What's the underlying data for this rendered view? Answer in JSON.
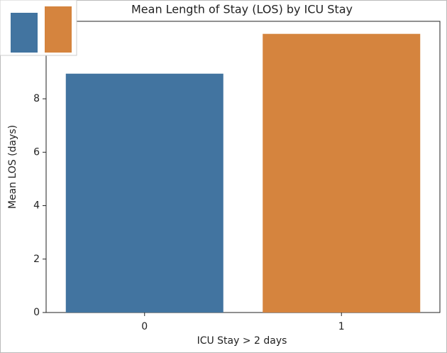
{
  "chart_data": {
    "type": "bar",
    "title": "Mean Length of Stay (LOS) by ICU Stay",
    "x_label": "ICU Stay > 2 days",
    "y_label": "Mean LOS (days)",
    "categories": [
      "0",
      "1"
    ],
    "values": [
      8.94,
      10.43
    ],
    "colors": [
      "#4274a0",
      "#d5843e"
    ],
    "ylim": [
      0,
      10.9
    ],
    "yticks": [
      0,
      2,
      4,
      6,
      8
    ]
  }
}
